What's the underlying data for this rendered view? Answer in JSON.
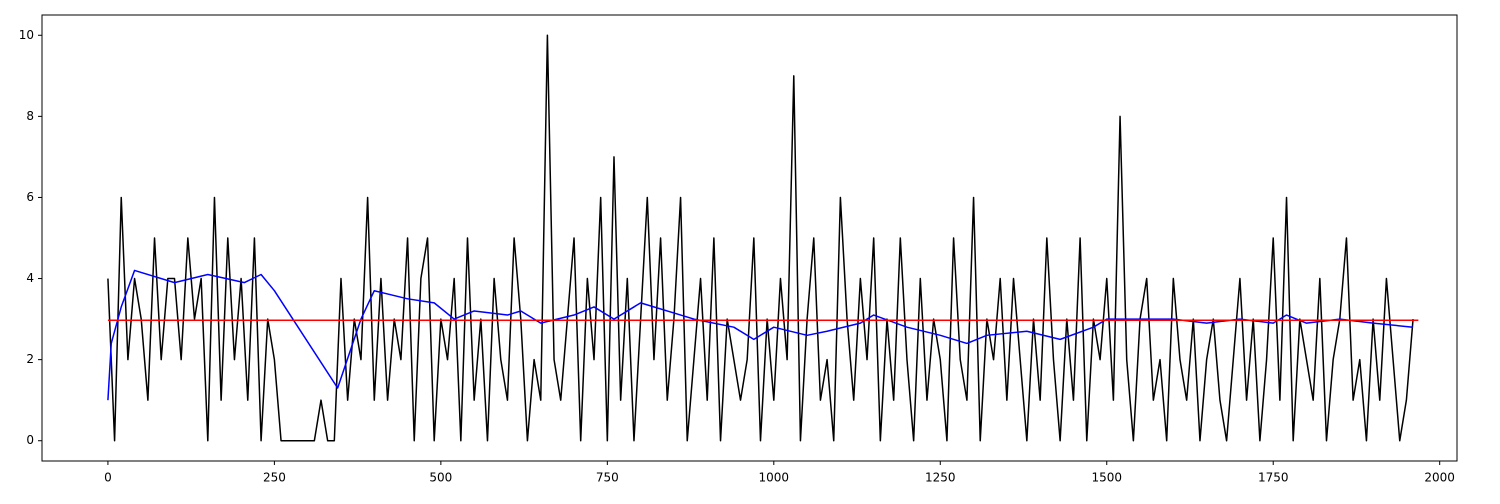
{
  "chart_data": {
    "type": "line",
    "xlim": [
      -99,
      2026
    ],
    "ylim": [
      -0.5,
      10.5
    ],
    "xticks": [
      0,
      250,
      500,
      750,
      1000,
      1250,
      1500,
      1750,
      2000
    ],
    "yticks": [
      0,
      2,
      4,
      6,
      8,
      10
    ],
    "series": [
      {
        "color": "#000000",
        "x": [
          0,
          10,
          20,
          30,
          40,
          50,
          60,
          70,
          80,
          90,
          100,
          110,
          120,
          130,
          140,
          150,
          160,
          170,
          180,
          190,
          200,
          210,
          220,
          230,
          240,
          250,
          260,
          270,
          280,
          290,
          300,
          310,
          320,
          330,
          340,
          350,
          360,
          370,
          380,
          390,
          400,
          410,
          420,
          430,
          440,
          450,
          460,
          470,
          480,
          490,
          500,
          510,
          520,
          530,
          540,
          550,
          560,
          570,
          580,
          590,
          600,
          610,
          620,
          630,
          640,
          650,
          660,
          670,
          680,
          690,
          700,
          710,
          720,
          730,
          740,
          750,
          760,
          770,
          780,
          790,
          800,
          810,
          820,
          830,
          840,
          850,
          860,
          870,
          880,
          890,
          900,
          910,
          920,
          930,
          940,
          950,
          960,
          970,
          980,
          990,
          1000,
          1010,
          1020,
          1030,
          1040,
          1050,
          1060,
          1070,
          1080,
          1090,
          1100,
          1110,
          1120,
          1130,
          1140,
          1150,
          1160,
          1170,
          1180,
          1190,
          1200,
          1210,
          1220,
          1230,
          1240,
          1250,
          1260,
          1270,
          1280,
          1290,
          1300,
          1310,
          1320,
          1330,
          1340,
          1350,
          1360,
          1370,
          1380,
          1390,
          1400,
          1410,
          1420,
          1430,
          1440,
          1450,
          1460,
          1470,
          1480,
          1490,
          1500,
          1510,
          1520,
          1530,
          1540,
          1550,
          1560,
          1570,
          1580,
          1590,
          1600,
          1610,
          1620,
          1630,
          1640,
          1650,
          1660,
          1670,
          1680,
          1690,
          1700,
          1710,
          1720,
          1730,
          1740,
          1750,
          1760,
          1770,
          1780,
          1790,
          1800,
          1810,
          1820,
          1830,
          1840,
          1850,
          1860,
          1870,
          1880,
          1890,
          1900,
          1910,
          1920,
          1930,
          1940,
          1950,
          1960
        ],
        "values": [
          4,
          0,
          6,
          2,
          4,
          3,
          1,
          5,
          2,
          4,
          4,
          2,
          5,
          3,
          4,
          0,
          6,
          1,
          5,
          2,
          4,
          1,
          5,
          0,
          3,
          2,
          0,
          0,
          0,
          0,
          0,
          0,
          1,
          0,
          0,
          4,
          1,
          3,
          2,
          6,
          1,
          4,
          1,
          3,
          2,
          5,
          0,
          4,
          5,
          0,
          3,
          2,
          4,
          0,
          5,
          1,
          3,
          0,
          4,
          2,
          1,
          5,
          3,
          0,
          2,
          1,
          10,
          2,
          1,
          3,
          5,
          0,
          4,
          2,
          6,
          0,
          7,
          1,
          4,
          0,
          3,
          6,
          2,
          5,
          1,
          3,
          6,
          0,
          2,
          4,
          1,
          5,
          0,
          3,
          2,
          1,
          2,
          5,
          0,
          3,
          1,
          4,
          2,
          9,
          0,
          3,
          5,
          1,
          2,
          0,
          6,
          3,
          1,
          4,
          2,
          5,
          0,
          3,
          1,
          5,
          2,
          0,
          4,
          1,
          3,
          2,
          0,
          5,
          2,
          1,
          6,
          0,
          3,
          2,
          4,
          1,
          4,
          2,
          0,
          3,
          1,
          5,
          2,
          0,
          3,
          1,
          5,
          0,
          3,
          2,
          4,
          1,
          8,
          2,
          0,
          3,
          4,
          1,
          2,
          0,
          4,
          2,
          1,
          3,
          0,
          2,
          3,
          1,
          0,
          2,
          4,
          1,
          3,
          0,
          2,
          5,
          1,
          6,
          0,
          3,
          2,
          1,
          4,
          0,
          2,
          3,
          5,
          1,
          2,
          0,
          3,
          1,
          4,
          2,
          0,
          1,
          3
        ]
      },
      {
        "color": "#0000ff",
        "x": [
          0,
          5,
          20,
          40,
          100,
          150,
          205,
          230,
          250,
          345,
          380,
          400,
          450,
          490,
          520,
          550,
          600,
          620,
          650,
          700,
          730,
          760,
          800,
          880,
          940,
          970,
          1000,
          1050,
          1080,
          1130,
          1150,
          1200,
          1250,
          1290,
          1320,
          1380,
          1430,
          1480,
          1500,
          1600,
          1650,
          1700,
          1750,
          1770,
          1800,
          1850,
          1900,
          1960
        ],
        "values": [
          1.0,
          2.4,
          3.3,
          4.2,
          3.9,
          4.1,
          3.9,
          4.1,
          3.7,
          1.3,
          3.0,
          3.7,
          3.5,
          3.4,
          3.0,
          3.2,
          3.1,
          3.2,
          2.9,
          3.1,
          3.3,
          3.0,
          3.4,
          3.0,
          2.8,
          2.5,
          2.8,
          2.6,
          2.7,
          2.9,
          3.1,
          2.8,
          2.6,
          2.4,
          2.6,
          2.7,
          2.5,
          2.8,
          3.0,
          3.0,
          2.9,
          3.0,
          2.9,
          3.1,
          2.9,
          3.0,
          2.9,
          2.8
        ]
      },
      {
        "color": "#ff0000",
        "x": [
          0,
          1968
        ],
        "values": [
          2.97,
          2.97
        ]
      }
    ]
  }
}
